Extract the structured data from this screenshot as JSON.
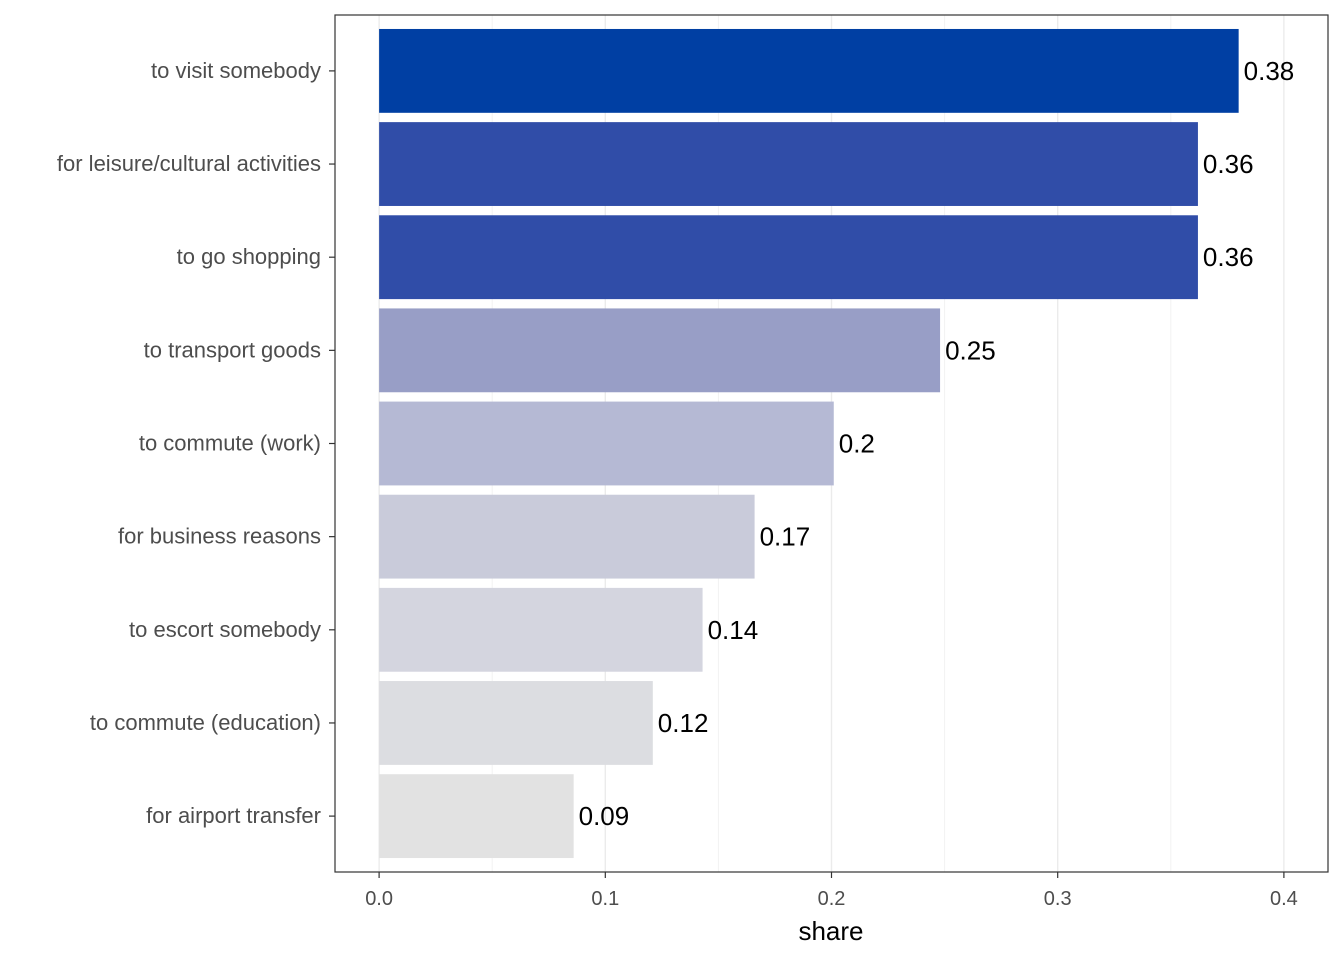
{
  "chart_data": {
    "type": "bar",
    "orientation": "horizontal",
    "categories": [
      "to visit somebody",
      "for leisure/cultural activities",
      "to go shopping",
      "to transport goods",
      "to commute (work)",
      "for business reasons",
      "to escort somebody",
      "to commute (education)",
      "for airport transfer"
    ],
    "values": [
      0.38,
      0.362,
      0.362,
      0.248,
      0.201,
      0.166,
      0.143,
      0.121,
      0.086
    ],
    "data_labels": [
      "0.38",
      "0.36",
      "0.36",
      "0.25",
      "0.2",
      "0.17",
      "0.14",
      "0.12",
      "0.09"
    ],
    "colors": [
      "#003fa3",
      "#304da8",
      "#304da8",
      "#989ec6",
      "#b5b9d4",
      "#c9cbda",
      "#d4d5df",
      "#dcdde1",
      "#e2e2e2"
    ],
    "xlabel": "share",
    "ylabel": "",
    "xlim": [
      -0.0195,
      0.4195
    ],
    "xticks": [
      0.0,
      0.1,
      0.2,
      0.3,
      0.4
    ],
    "xtick_labels": [
      "0.0",
      "0.1",
      "0.2",
      "0.3",
      "0.4"
    ],
    "grid": true,
    "legend": "none"
  }
}
